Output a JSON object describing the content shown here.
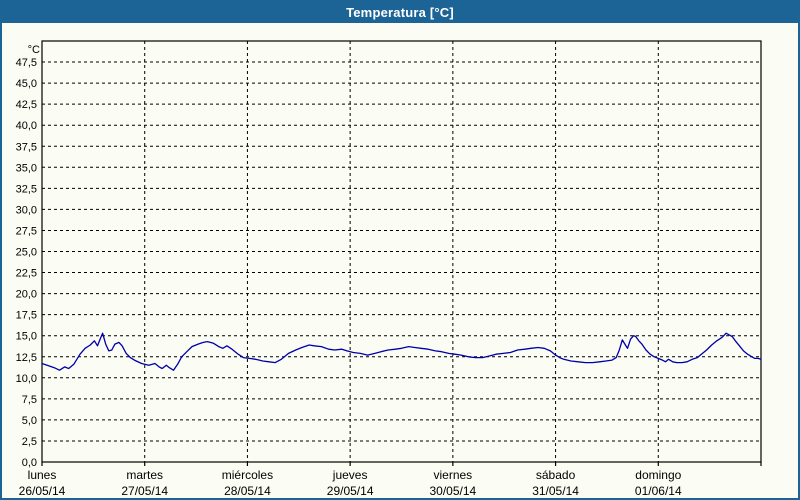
{
  "window": {
    "title": "Temperatura [°C]"
  },
  "colors": {
    "titlebar": "#1d6496",
    "frame": "#1c6396",
    "background": "#fbfcf3",
    "line": "#0000aa",
    "grid": "#000000",
    "text": "#000000"
  },
  "chart_data": {
    "type": "line",
    "title": "Temperatura [°C]",
    "ylabel": "°C",
    "unit_label": "°C",
    "ylim": [
      0,
      50
    ],
    "y_tick_step": 2.5,
    "y_tick_labels": [
      "0,0",
      "2,5",
      "5,0",
      "7,5",
      "10,0",
      "12,5",
      "15,0",
      "17,5",
      "20,0",
      "22,5",
      "25,0",
      "27,5",
      "30,0",
      "32,5",
      "35,0",
      "37,5",
      "40,0",
      "42,5",
      "45,0",
      "47,5"
    ],
    "x_days": [
      {
        "name": "lunes",
        "date": "26/05/14"
      },
      {
        "name": "martes",
        "date": "27/05/14"
      },
      {
        "name": "miércoles",
        "date": "28/05/14"
      },
      {
        "name": "jueves",
        "date": "29/05/14"
      },
      {
        "name": "viernes",
        "date": "30/05/14"
      },
      {
        "name": "sábado",
        "date": "31/05/14"
      },
      {
        "name": "domingo",
        "date": "01/06/14"
      }
    ],
    "grid": "dashed",
    "legend": "none",
    "series": [
      {
        "name": "Temperatura",
        "color": "#0000aa",
        "points": [
          [
            0.0,
            11.7
          ],
          [
            0.05,
            11.5
          ],
          [
            0.12,
            11.2
          ],
          [
            0.17,
            10.9
          ],
          [
            0.22,
            11.3
          ],
          [
            0.26,
            11.1
          ],
          [
            0.31,
            11.6
          ],
          [
            0.37,
            12.8
          ],
          [
            0.42,
            13.5
          ],
          [
            0.47,
            13.9
          ],
          [
            0.51,
            14.4
          ],
          [
            0.54,
            13.8
          ],
          [
            0.57,
            14.7
          ],
          [
            0.59,
            15.3
          ],
          [
            0.62,
            14.0
          ],
          [
            0.65,
            13.2
          ],
          [
            0.68,
            13.3
          ],
          [
            0.71,
            14.0
          ],
          [
            0.75,
            14.2
          ],
          [
            0.78,
            13.8
          ],
          [
            0.82,
            12.9
          ],
          [
            0.86,
            12.4
          ],
          [
            0.9,
            12.1
          ],
          [
            0.97,
            11.7
          ],
          [
            1.04,
            11.5
          ],
          [
            1.1,
            11.7
          ],
          [
            1.14,
            11.3
          ],
          [
            1.17,
            11.1
          ],
          [
            1.21,
            11.5
          ],
          [
            1.24,
            11.2
          ],
          [
            1.28,
            10.9
          ],
          [
            1.32,
            11.6
          ],
          [
            1.36,
            12.5
          ],
          [
            1.41,
            13.1
          ],
          [
            1.46,
            13.7
          ],
          [
            1.52,
            14.0
          ],
          [
            1.57,
            14.2
          ],
          [
            1.61,
            14.3
          ],
          [
            1.67,
            14.1
          ],
          [
            1.72,
            13.7
          ],
          [
            1.76,
            13.5
          ],
          [
            1.8,
            13.8
          ],
          [
            1.85,
            13.4
          ],
          [
            1.91,
            12.8
          ],
          [
            1.96,
            12.4
          ],
          [
            2.02,
            12.3
          ],
          [
            2.08,
            12.2
          ],
          [
            2.15,
            12.0
          ],
          [
            2.21,
            11.9
          ],
          [
            2.27,
            11.8
          ],
          [
            2.33,
            12.2
          ],
          [
            2.4,
            12.9
          ],
          [
            2.47,
            13.3
          ],
          [
            2.53,
            13.6
          ],
          [
            2.6,
            13.9
          ],
          [
            2.65,
            13.8
          ],
          [
            2.72,
            13.7
          ],
          [
            2.79,
            13.4
          ],
          [
            2.85,
            13.3
          ],
          [
            2.92,
            13.4
          ],
          [
            2.97,
            13.2
          ],
          [
            3.03,
            13.0
          ],
          [
            3.1,
            12.9
          ],
          [
            3.17,
            12.7
          ],
          [
            3.24,
            12.9
          ],
          [
            3.3,
            13.1
          ],
          [
            3.37,
            13.3
          ],
          [
            3.44,
            13.4
          ],
          [
            3.5,
            13.5
          ],
          [
            3.57,
            13.7
          ],
          [
            3.63,
            13.6
          ],
          [
            3.69,
            13.5
          ],
          [
            3.76,
            13.4
          ],
          [
            3.83,
            13.2
          ],
          [
            3.89,
            13.1
          ],
          [
            3.96,
            12.9
          ],
          [
            4.02,
            12.8
          ],
          [
            4.08,
            12.7
          ],
          [
            4.15,
            12.5
          ],
          [
            4.22,
            12.4
          ],
          [
            4.29,
            12.4
          ],
          [
            4.36,
            12.6
          ],
          [
            4.42,
            12.8
          ],
          [
            4.49,
            12.9
          ],
          [
            4.56,
            13.0
          ],
          [
            4.63,
            13.3
          ],
          [
            4.7,
            13.4
          ],
          [
            4.76,
            13.5
          ],
          [
            4.83,
            13.6
          ],
          [
            4.89,
            13.5
          ],
          [
            4.95,
            13.2
          ],
          [
            5.0,
            12.7
          ],
          [
            5.04,
            12.4
          ],
          [
            5.08,
            12.2
          ],
          [
            5.15,
            12.0
          ],
          [
            5.22,
            11.9
          ],
          [
            5.29,
            11.8
          ],
          [
            5.36,
            11.8
          ],
          [
            5.43,
            11.9
          ],
          [
            5.49,
            12.0
          ],
          [
            5.55,
            12.1
          ],
          [
            5.59,
            12.4
          ],
          [
            5.62,
            13.3
          ],
          [
            5.65,
            14.5
          ],
          [
            5.68,
            13.9
          ],
          [
            5.7,
            13.5
          ],
          [
            5.73,
            14.6
          ],
          [
            5.76,
            15.0
          ],
          [
            5.78,
            14.9
          ],
          [
            5.81,
            14.4
          ],
          [
            5.84,
            14.0
          ],
          [
            5.88,
            13.3
          ],
          [
            5.92,
            12.8
          ],
          [
            5.96,
            12.5
          ],
          [
            6.0,
            12.3
          ],
          [
            6.04,
            12.1
          ],
          [
            6.07,
            11.9
          ],
          [
            6.1,
            12.2
          ],
          [
            6.14,
            11.9
          ],
          [
            6.18,
            11.8
          ],
          [
            6.23,
            11.8
          ],
          [
            6.28,
            11.9
          ],
          [
            6.33,
            12.2
          ],
          [
            6.38,
            12.4
          ],
          [
            6.42,
            12.8
          ],
          [
            6.47,
            13.3
          ],
          [
            6.52,
            13.9
          ],
          [
            6.57,
            14.4
          ],
          [
            6.62,
            14.8
          ],
          [
            6.66,
            15.3
          ],
          [
            6.69,
            15.1
          ],
          [
            6.72,
            14.9
          ],
          [
            6.75,
            14.4
          ],
          [
            6.79,
            13.8
          ],
          [
            6.83,
            13.2
          ],
          [
            6.87,
            12.8
          ],
          [
            6.91,
            12.5
          ],
          [
            6.94,
            12.3
          ],
          [
            6.97,
            12.3
          ],
          [
            7.0,
            12.2
          ]
        ]
      }
    ]
  }
}
